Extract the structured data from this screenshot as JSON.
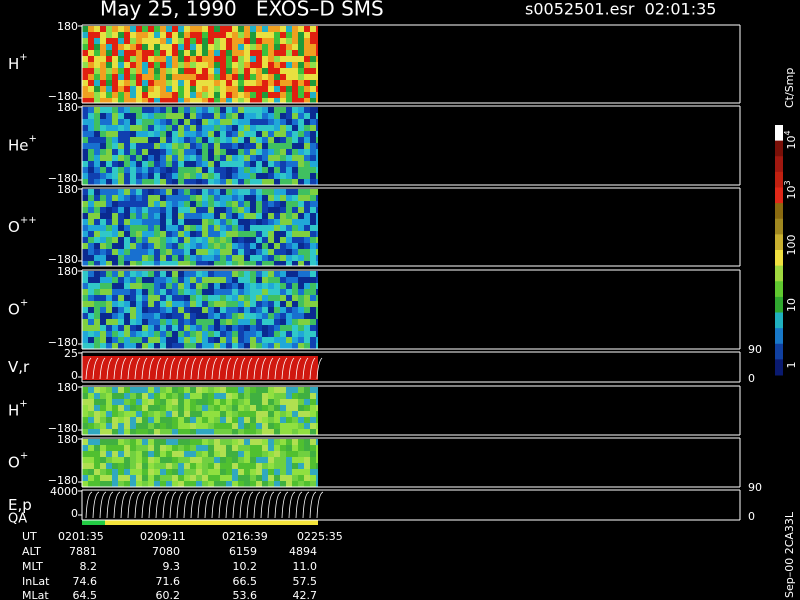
{
  "header": {
    "title": "May 25, 1990   EXOS–D SMS",
    "file": "s0052501.esr  02:01:35"
  },
  "panels": [
    {
      "label": {
        "base": "H",
        "sup": "+"
      },
      "ticks": [
        "180",
        "−180"
      ]
    },
    {
      "label": {
        "base": "He",
        "sup": "+"
      },
      "ticks": [
        "180",
        "−180"
      ]
    },
    {
      "label": {
        "base": "O",
        "sup": "++"
      },
      "ticks": [
        "180",
        "−180"
      ]
    },
    {
      "label": {
        "base": "O",
        "sup": "+"
      },
      "ticks": [
        "180",
        "−180"
      ]
    },
    {
      "label": {
        "base": "V,r"
      },
      "ticks": [
        "25",
        "0"
      ],
      "right_ticks": [
        "90",
        "0"
      ]
    },
    {
      "label": {
        "base": "H",
        "sup": "+"
      },
      "ticks": [
        "180",
        "−180"
      ]
    },
    {
      "label": {
        "base": "O",
        "sup": "+"
      },
      "ticks": [
        "180",
        "−180"
      ]
    },
    {
      "label": {
        "base": "E,p"
      },
      "ticks": [
        "4000",
        "0"
      ],
      "right_ticks": [
        "90",
        "0"
      ]
    }
  ],
  "qa_label": "QA",
  "colorbar": {
    "unit": "Ct/Smp",
    "ticks": [
      {
        "base": "10",
        "exp": "4"
      },
      {
        "base": "10",
        "exp": "3"
      },
      "100",
      "10",
      "1"
    ]
  },
  "table": {
    "rows": [
      [
        "UT",
        "0201:35",
        "0209:11",
        "0216:39",
        "0225:35"
      ],
      [
        "ALT",
        "7881",
        "7080",
        "6159",
        "4894"
      ],
      [
        "MLT",
        "8.2",
        "9.3",
        "10.2",
        "11.0"
      ],
      [
        "InLat",
        "74.6",
        "71.6",
        "66.5",
        "57.5"
      ],
      [
        "MLat",
        "64.5",
        "60.2",
        "53.6",
        "42.7"
      ]
    ]
  },
  "footer": "Sep–00 2CA33L"
}
